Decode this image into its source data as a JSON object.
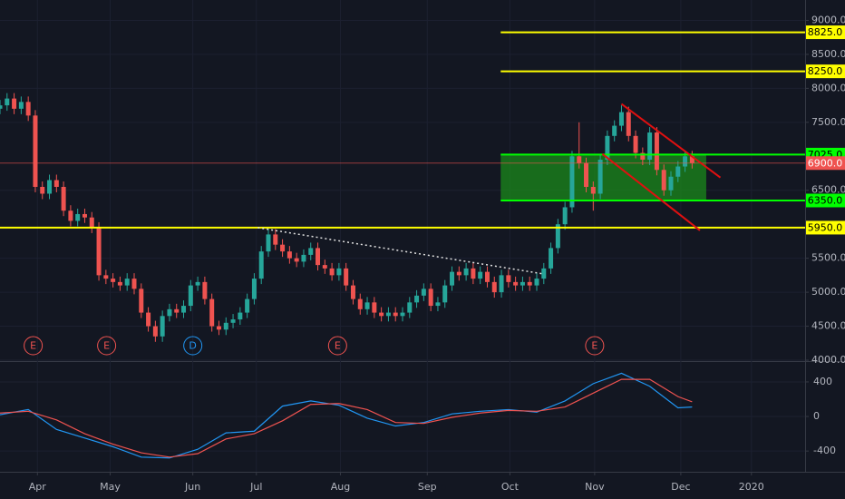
{
  "chart_data": {
    "type": "candlestick",
    "xlim": [
      0,
      114
    ],
    "xticks": [
      {
        "value": 5.3,
        "label": "Apr"
      },
      {
        "value": 15.6,
        "label": "May"
      },
      {
        "value": 27.3,
        "label": "Jun"
      },
      {
        "value": 36.3,
        "label": "Jul"
      },
      {
        "value": 48.2,
        "label": "Aug"
      },
      {
        "value": 60.5,
        "label": "Sep"
      },
      {
        "value": 72.2,
        "label": "Oct"
      },
      {
        "value": 84.2,
        "label": "Nov"
      },
      {
        "value": 96.4,
        "label": "Dec"
      },
      {
        "value": 106.4,
        "label": "2020"
      }
    ],
    "ylim": [
      4000,
      9300
    ],
    "yticks": [
      {
        "value": 9000,
        "label": "9000.0"
      },
      {
        "value": 8500,
        "label": "8500.0"
      },
      {
        "value": 8000,
        "label": "8000.0"
      },
      {
        "value": 7500,
        "label": "7500.0"
      },
      {
        "value": 6500,
        "label": "6500.0"
      },
      {
        "value": 5500,
        "label": "5500.0"
      },
      {
        "value": 5000,
        "label": "5000.0"
      },
      {
        "value": 4500,
        "label": "4500.0"
      },
      {
        "value": 4000,
        "label": "4000.0"
      }
    ],
    "grid": true,
    "up_color": "#26a69a",
    "down_color": "#ef5350",
    "candles": {
      "open": [
        7700,
        7750,
        7850,
        7700,
        7800,
        7600,
        6550,
        6450,
        6650,
        6550,
        6200,
        6050,
        6150,
        6100,
        5950,
        5250,
        5200,
        5150,
        5100,
        5200,
        5050,
        4700,
        4500,
        4350,
        4650,
        4750,
        4700,
        4800,
        5100,
        5150,
        4900,
        4500,
        4450,
        4550,
        4600,
        4700,
        4900,
        5200,
        5600,
        5850,
        5700,
        5600,
        5500,
        5450,
        5550,
        5650,
        5400,
        5350,
        5250,
        5350,
        5100,
        4900,
        4750,
        4850,
        4700,
        4650,
        4700,
        4650,
        4700,
        4850,
        4950,
        5050,
        4800,
        4850,
        5100,
        5300,
        5250,
        5350,
        5200,
        5300,
        5150,
        5000,
        5250,
        5150,
        5100,
        5150,
        5100,
        5200,
        5350,
        5650,
        6000,
        6250,
        7000,
        6900,
        6550,
        6450,
        6950,
        7300,
        7450,
        7650,
        7300,
        7050,
        6950,
        7350,
        6800,
        6500,
        6700,
        6850,
        7000
      ],
      "high": [
        7830,
        7930,
        7930,
        7880,
        7880,
        7680,
        6630,
        6730,
        6730,
        6630,
        6280,
        6230,
        6230,
        6180,
        6030,
        5330,
        5280,
        5230,
        5280,
        5280,
        5130,
        4780,
        4580,
        4730,
        4830,
        4830,
        4880,
        5180,
        5230,
        5230,
        4980,
        4580,
        4630,
        4680,
        4780,
        4980,
        5280,
        5680,
        5930,
        5930,
        5780,
        5680,
        5580,
        5630,
        5730,
        5730,
        5480,
        5430,
        5430,
        5430,
        5180,
        4980,
        4930,
        4930,
        4780,
        4780,
        4780,
        4780,
        4930,
        5030,
        5130,
        5130,
        4930,
        5180,
        5380,
        5380,
        5430,
        5430,
        5380,
        5380,
        5230,
        5330,
        5330,
        5230,
        5230,
        5230,
        5280,
        5430,
        5730,
        6080,
        6330,
        7080,
        7500,
        6980,
        6630,
        7030,
        7380,
        7530,
        7750,
        7730,
        7380,
        7130,
        7430,
        7430,
        6880,
        6780,
        6930,
        7080,
        7080
      ],
      "low": [
        7620,
        7670,
        7620,
        7620,
        7520,
        6470,
        6370,
        6370,
        6470,
        6120,
        5970,
        5970,
        6020,
        5870,
        5170,
        5120,
        5070,
        5020,
        5020,
        4970,
        4620,
        4420,
        4270,
        4270,
        4570,
        4620,
        4620,
        4720,
        5020,
        4820,
        4420,
        4370,
        4370,
        4470,
        4520,
        4620,
        4820,
        5120,
        5520,
        5620,
        5520,
        5420,
        5370,
        5370,
        5470,
        5320,
        5270,
        5170,
        5170,
        5020,
        4820,
        4670,
        4670,
        4620,
        4570,
        4570,
        4570,
        4570,
        4620,
        4770,
        4870,
        4720,
        4720,
        4770,
        5020,
        5170,
        5170,
        5120,
        5120,
        5070,
        4920,
        4920,
        5070,
        5020,
        5020,
        5020,
        5020,
        5120,
        5270,
        5570,
        5920,
        6170,
        6820,
        6470,
        6200,
        6370,
        6870,
        7220,
        7370,
        7220,
        6970,
        6870,
        6870,
        6720,
        6420,
        6420,
        6620,
        6770,
        6820
      ],
      "close": [
        7750,
        7850,
        7700,
        7800,
        7600,
        6550,
        6450,
        6650,
        6550,
        6200,
        6050,
        6150,
        6100,
        5950,
        5250,
        5200,
        5150,
        5100,
        5200,
        5050,
        4700,
        4500,
        4350,
        4650,
        4750,
        4700,
        4800,
        5100,
        5150,
        4900,
        4500,
        4450,
        4550,
        4600,
        4700,
        4900,
        5200,
        5600,
        5850,
        5700,
        5600,
        5500,
        5450,
        5550,
        5650,
        5400,
        5350,
        5250,
        5350,
        5100,
        4900,
        4750,
        4850,
        4700,
        4650,
        4700,
        4650,
        4700,
        4850,
        4950,
        5050,
        4800,
        4850,
        5100,
        5300,
        5250,
        5350,
        5200,
        5300,
        5150,
        5000,
        5250,
        5150,
        5100,
        5150,
        5100,
        5200,
        5350,
        5650,
        6000,
        6250,
        7000,
        6900,
        6550,
        6450,
        6950,
        7300,
        7450,
        7650,
        7300,
        7050,
        6950,
        7350,
        6800,
        6500,
        6700,
        6850,
        7000,
        6900
      ]
    },
    "levels": [
      {
        "value": 8825,
        "label": "8825.0",
        "color": "#ffff00",
        "x_start": 70.9
      },
      {
        "value": 8250,
        "label": "8250.0",
        "color": "#ffff00",
        "x_start": 70.9
      },
      {
        "value": 7025,
        "label": "7025.0",
        "color": "#00ff00",
        "x_start": 70.9
      },
      {
        "value": 6900,
        "label": "6900.0",
        "color": "#ef5350",
        "x_start": 0
      },
      {
        "value": 6350,
        "label": "6350.0",
        "color": "#00ff00",
        "x_start": 70.9
      },
      {
        "value": 5950,
        "label": "5950.0",
        "color": "#ffff00",
        "x_start": 0
      }
    ],
    "zone": {
      "x": [
        70.9,
        100
      ],
      "y": [
        6350,
        7025
      ],
      "color": "#1b8a1b"
    },
    "trendlines": [
      {
        "x": [
          36.5,
          76.9
        ],
        "y": [
          5950,
          5270
        ],
        "color": "#e0e0e0",
        "dashed": true
      },
      {
        "x": [
          88,
          102
        ],
        "y": [
          7770,
          6687
        ],
        "color": "#e01010",
        "dashed": false
      },
      {
        "x": [
          85.3,
          99.1
        ],
        "y": [
          7035,
          5910
        ],
        "color": "#e01010",
        "dashed": false
      }
    ],
    "events": [
      {
        "x": 4.7,
        "label": "E",
        "color": "#ef5350"
      },
      {
        "x": 15.1,
        "label": "E",
        "color": "#ef5350"
      },
      {
        "x": 27.3,
        "label": "D",
        "color": "#2196f3"
      },
      {
        "x": 47.8,
        "label": "E",
        "color": "#ef5350"
      },
      {
        "x": 84.2,
        "label": "E",
        "color": "#ef5350"
      }
    ],
    "macd": {
      "x": [
        0,
        4,
        8,
        12,
        16,
        20,
        24,
        28,
        32,
        36,
        40,
        44,
        48,
        52,
        56,
        60,
        64,
        68,
        72,
        76,
        80,
        84,
        88,
        92,
        96,
        98
      ],
      "y2lim": [
        -640,
        620
      ],
      "y2ticks": [
        400,
        0,
        -400
      ],
      "series": [
        {
          "color": "#2196f3",
          "values": [
            20,
            80,
            -150,
            -250,
            -350,
            -470,
            -480,
            -380,
            -190,
            -170,
            120,
            180,
            130,
            -20,
            -110,
            -70,
            30,
            60,
            80,
            50,
            180,
            380,
            500,
            350,
            100,
            110
          ]
        },
        {
          "color": "#ef5350",
          "values": [
            40,
            60,
            -40,
            -200,
            -320,
            -420,
            -470,
            -430,
            -260,
            -200,
            -50,
            140,
            150,
            80,
            -70,
            -80,
            -10,
            40,
            70,
            60,
            110,
            270,
            430,
            430,
            230,
            170
          ]
        }
      ]
    }
  }
}
